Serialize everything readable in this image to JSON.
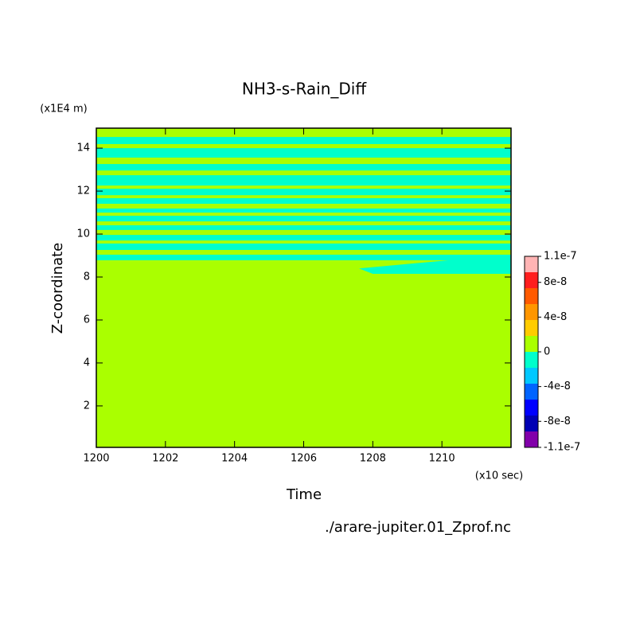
{
  "chart_data": {
    "type": "contour",
    "title": "NH3-s-Rain_Diff",
    "xlabel": "Time",
    "xunit": "(x10 sec)",
    "ylabel": "Z-coordinate",
    "yunit": "(x1E4 m)",
    "footer": "./arare-jupiter.01_Zprof.nc",
    "xlim": [
      1200,
      1212
    ],
    "ylim": [
      0.07,
      14.93
    ],
    "xticks": [
      1200,
      1202,
      1204,
      1206,
      1208,
      1210
    ],
    "yticks": [
      2,
      4,
      6,
      8,
      10,
      12,
      14
    ],
    "background": "#aaff00",
    "regions": [
      {
        "color": "#00ffcc",
        "y": [
          14.19,
          14.52
        ]
      },
      {
        "color": "#00ffcc",
        "y": [
          13.56,
          14.0
        ]
      },
      {
        "color": "#00ffcc",
        "y": [
          12.96,
          13.26
        ]
      },
      {
        "color": "#00ffcc",
        "y": [
          12.26,
          12.74
        ]
      },
      {
        "color": "#00ffcc",
        "y": [
          11.81,
          12.11
        ]
      },
      {
        "color": "#00ffcc",
        "y": [
          11.41,
          11.67
        ]
      },
      {
        "color": "#00ffcc",
        "y": [
          11.0,
          11.19
        ]
      },
      {
        "color": "#00ffcc",
        "y": [
          10.59,
          10.85
        ]
      },
      {
        "color": "#00ffcc",
        "y": [
          10.19,
          10.41
        ]
      },
      {
        "color": "#00ffcc",
        "y": [
          9.7,
          9.96
        ]
      },
      {
        "color": "#00ffcc",
        "y": [
          9.26,
          9.56
        ]
      },
      {
        "color": "#00ffcc",
        "y": [
          8.78,
          9.04
        ]
      },
      {
        "color": "#00ffcc",
        "x": [
          1207.6,
          1208,
          1212,
          1212,
          1211
        ],
        "y": [
          8.4,
          8.15,
          8.15,
          8.9,
          8.9
        ]
      }
    ],
    "colorbar": {
      "lim": [
        -1.1e-07,
        1.1e-07
      ],
      "ticks": [
        1.1e-07,
        8e-08,
        4e-08,
        0,
        -4e-08,
        -8e-08,
        -1.1e-07
      ],
      "colors": [
        "#ffb4b4",
        "#ff1e1e",
        "#ff5a00",
        "#ff9600",
        "#ffcc00",
        "#aaff00",
        "#00ffcc",
        "#00c8ff",
        "#0064ff",
        "#0000ff",
        "#0000b4",
        "#8200aa"
      ]
    }
  }
}
